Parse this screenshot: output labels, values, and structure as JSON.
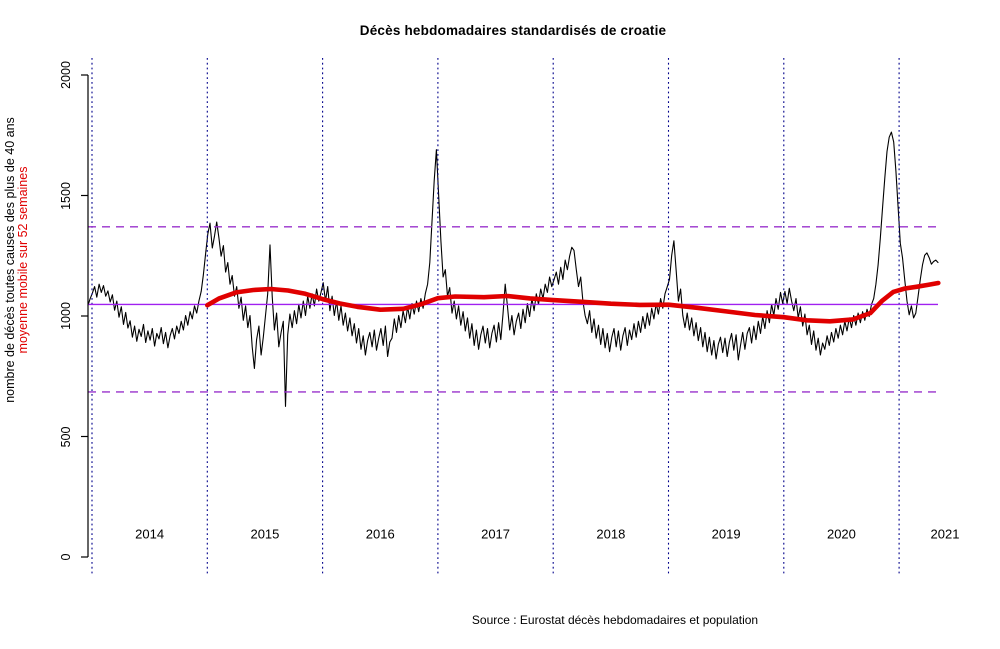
{
  "title": "Décès hebdomadaires standardisés de croatie",
  "source": "Source : Eurostat décès hebdomadaires et population",
  "y_axis": {
    "label_black": "nombre de décès toutes causes des plus de 40 ans",
    "label_red": "moyenne mobile sur 52 semaines",
    "ticks": [
      0,
      500,
      1000,
      1500,
      2000
    ]
  },
  "x_axis": {
    "years": [
      2014,
      2015,
      2016,
      2017,
      2018,
      2019,
      2020,
      2021
    ]
  },
  "colors": {
    "title": "#000000",
    "ylabel_black": "#000000",
    "ylabel_red": "#e00000",
    "year_gridline": "#00008b",
    "mean_line": "#a020f0",
    "band_line": "#9932cc",
    "weekly_line": "#000000",
    "moving_average": "#e00000",
    "axis": "#000000"
  },
  "chart_data": {
    "type": "line",
    "title": "Décès hebdomadaires standardisés de croatie",
    "xlabel": "",
    "ylabel": "nombre de décès toutes causes des plus de 40 ans",
    "ylim": [
      0,
      2000
    ],
    "y_ticks": [
      0,
      500,
      1000,
      1500,
      2000
    ],
    "year_gridlines": [
      2014,
      2015,
      2016,
      2017,
      2018,
      2019,
      2020,
      2021
    ],
    "reference_lines": {
      "solid_mean": 1048,
      "dashed_upper": 1370,
      "dashed_lower": 685
    },
    "legend_position": "none",
    "grid": "vertical-dotted",
    "series": [
      {
        "name": "décès hebdomadaires",
        "color": "#000000",
        "start_year": 2013.965,
        "step_years": 0.01925,
        "values": [
          1045,
          1072,
          1095,
          1122,
          1078,
          1132,
          1098,
          1126,
          1082,
          1104,
          1058,
          1088,
          1024,
          1062,
          995,
          1038,
          965,
          1015,
          950,
          980,
          912,
          958,
          895,
          945,
          915,
          965,
          890,
          938,
          900,
          948,
          875,
          928,
          905,
          952,
          885,
          932,
          868,
          918,
          948,
          905,
          958,
          928,
          978,
          942,
          1002,
          962,
          1018,
          988,
          1042,
          1012,
          1062,
          1102,
          1172,
          1258,
          1340,
          1385,
          1282,
          1332,
          1390,
          1325,
          1248,
          1292,
          1182,
          1222,
          1132,
          1168,
          1082,
          1122,
          1032,
          1078,
          982,
          1042,
          952,
          1002,
          872,
          782,
          902,
          958,
          838,
          912,
          1002,
          1092,
          1295,
          1082,
          942,
          1012,
          872,
          932,
          978,
          625,
          922,
          1008,
          952,
          1022,
          968,
          1048,
          992,
          1062,
          1002,
          1082,
          1032,
          1092,
          1042,
          1112,
          1062,
          1098,
          1138,
          1062,
          1122,
          1022,
          1082,
          1002,
          1062,
          982,
          1042,
          962,
          1012,
          938,
          992,
          918,
          968,
          888,
          948,
          862,
          918,
          838,
          898,
          932,
          872,
          942,
          858,
          908,
          948,
          878,
          958,
          832,
          892,
          908,
          988,
          932,
          1002,
          952,
          1022,
          972,
          1038,
          988,
          1052,
          1008,
          1062,
          1018,
          1072,
          1032,
          1092,
          1132,
          1222,
          1392,
          1562,
          1690,
          1505,
          1312,
          1162,
          1192,
          1082,
          1118,
          1012,
          1062,
          988,
          1042,
          962,
          1018,
          938,
          992,
          908,
          968,
          878,
          942,
          862,
          922,
          958,
          888,
          948,
          868,
          928,
          962,
          892,
          972,
          902,
          1008,
          1132,
          1038,
          942,
          1002,
          922,
          978,
          1012,
          948,
          1028,
          972,
          1052,
          998,
          1072,
          1022,
          1092,
          1048,
          1112,
          1072,
          1132,
          1098,
          1162,
          1122,
          1152,
          1182,
          1132,
          1202,
          1152,
          1232,
          1192,
          1248,
          1285,
          1272,
          1192,
          1122,
          1162,
          1062,
          1002,
          968,
          1022,
          932,
          988,
          908,
          962,
          882,
          948,
          868,
          928,
          852,
          912,
          948,
          872,
          938,
          858,
          918,
          952,
          878,
          942,
          902,
          968,
          912,
          978,
          932,
          998,
          948,
          1012,
          962,
          1032,
          988,
          1052,
          1008,
          1072,
          1032,
          1092,
          1122,
          1152,
          1252,
          1312,
          1192,
          1062,
          1112,
          1002,
          952,
          1012,
          942,
          992,
          918,
          972,
          898,
          952,
          872,
          932,
          852,
          912,
          838,
          898,
          822,
          882,
          912,
          848,
          908,
          832,
          892,
          928,
          858,
          922,
          818,
          878,
          932,
          862,
          928,
          952,
          888,
          958,
          902,
          978,
          928,
          998,
          948,
          1022,
          972,
          1048,
          1002,
          1072,
          1028,
          1098,
          1052,
          1102,
          1052,
          1115,
          1062,
          1022,
          1072,
          992,
          1038,
          958,
          1008,
          922,
          962,
          882,
          938,
          858,
          908,
          838,
          888,
          862,
          918,
          878,
          932,
          892,
          948,
          908,
          962,
          922,
          978,
          938,
          992,
          952,
          1002,
          962,
          1012,
          972,
          1018,
          982,
          1028,
          998,
          1048,
          1072,
          1132,
          1212,
          1322,
          1452,
          1572,
          1682,
          1742,
          1763,
          1722,
          1602,
          1452,
          1302,
          1242,
          1152,
          1062,
          1005,
          1042,
          992,
          1012,
          1082,
          1152,
          1212,
          1252,
          1262,
          1242,
          1215,
          1226,
          1232,
          1222
        ]
      },
      {
        "name": "moyenne mobile sur 52 semaines",
        "color": "#e00000",
        "points": [
          [
            2015.0,
            1045
          ],
          [
            2015.1,
            1072
          ],
          [
            2015.25,
            1098
          ],
          [
            2015.4,
            1108
          ],
          [
            2015.55,
            1112
          ],
          [
            2015.7,
            1106
          ],
          [
            2015.85,
            1092
          ],
          [
            2016.0,
            1070
          ],
          [
            2016.15,
            1052
          ],
          [
            2016.3,
            1038
          ],
          [
            2016.5,
            1026
          ],
          [
            2016.7,
            1030
          ],
          [
            2016.85,
            1048
          ],
          [
            2017.0,
            1074
          ],
          [
            2017.15,
            1081
          ],
          [
            2017.4,
            1078
          ],
          [
            2017.6,
            1083
          ],
          [
            2017.8,
            1073
          ],
          [
            2018.0,
            1066
          ],
          [
            2018.25,
            1059
          ],
          [
            2018.5,
            1051
          ],
          [
            2018.75,
            1046
          ],
          [
            2019.0,
            1047
          ],
          [
            2019.25,
            1034
          ],
          [
            2019.5,
            1019
          ],
          [
            2019.75,
            1004
          ],
          [
            2020.0,
            995
          ],
          [
            2020.2,
            982
          ],
          [
            2020.4,
            978
          ],
          [
            2020.6,
            986
          ],
          [
            2020.75,
            1012
          ],
          [
            2020.85,
            1062
          ],
          [
            2020.95,
            1100
          ],
          [
            2021.05,
            1114
          ],
          [
            2021.15,
            1121
          ],
          [
            2021.25,
            1129
          ],
          [
            2021.34,
            1137
          ]
        ]
      }
    ]
  }
}
